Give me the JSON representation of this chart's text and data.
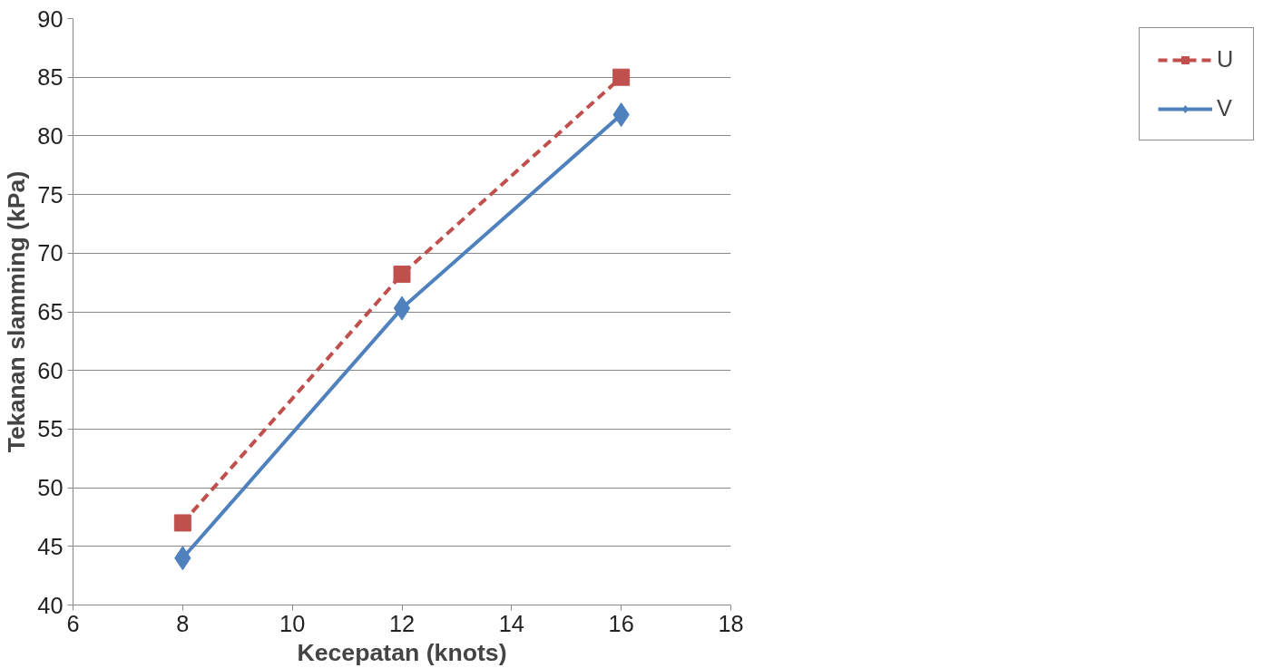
{
  "chart_data": {
    "type": "line",
    "xlabel": "Kecepatan (knots)",
    "ylabel": "Tekanan slamming (kPa)",
    "x": [
      8,
      12,
      16
    ],
    "series": [
      {
        "name": "U",
        "color": "#c0504d",
        "values": [
          47,
          68.2,
          85
        ],
        "marker": "square",
        "line_style": "dashed"
      },
      {
        "name": "V",
        "color": "#4f81bd",
        "values": [
          44,
          65.3,
          81.8
        ],
        "marker": "diamond",
        "line_style": "solid"
      }
    ],
    "xlim": [
      6,
      18
    ],
    "xticks": [
      6,
      8,
      10,
      12,
      14,
      16,
      18
    ],
    "ylim": [
      40,
      90
    ],
    "yticks": [
      40,
      45,
      50,
      55,
      60,
      65,
      70,
      75,
      80,
      85,
      90
    ],
    "grid": "y",
    "legend": "right"
  }
}
